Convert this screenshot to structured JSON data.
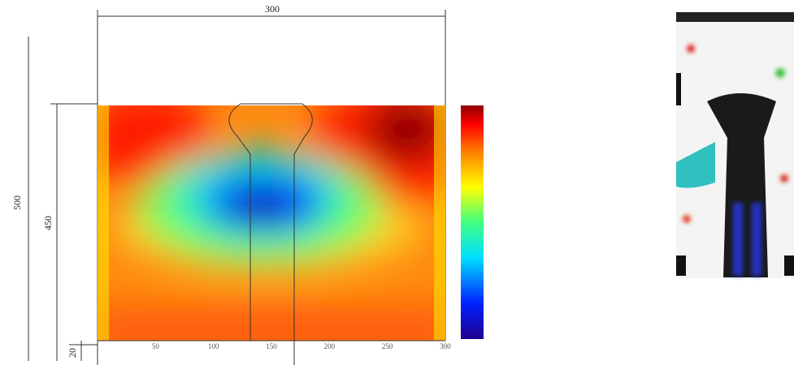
{
  "dimensions": {
    "width": "300",
    "height_total": "500",
    "height_inner": "450",
    "offset": "20"
  },
  "x_axis": {
    "ticks": [
      "50",
      "100",
      "150",
      "200",
      "250",
      "300"
    ]
  }
}
